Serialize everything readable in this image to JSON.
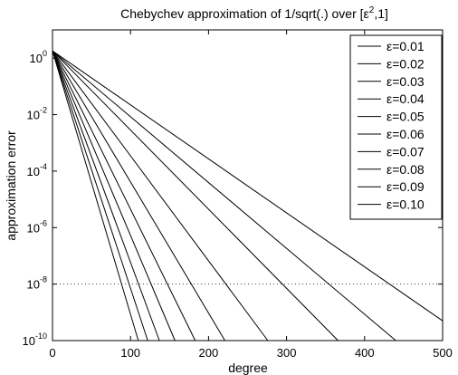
{
  "chart_data": {
    "type": "line",
    "title_main": "Chebychev approximation of 1/sqrt(.) over [ε",
    "title_sup": "2",
    "title_tail": ",1]",
    "xlabel": "degree",
    "ylabel": "approximation error",
    "xlim": [
      0,
      500
    ],
    "ylim_log10": [
      -10,
      1
    ],
    "y_scale": "log",
    "grid": false,
    "x_ticks": [
      0,
      100,
      200,
      300,
      400,
      500
    ],
    "y_ticks": [
      {
        "base": "10",
        "exp": "0",
        "value": 1
      },
      {
        "base": "10",
        "exp": "-2",
        "value": 0.01
      },
      {
        "base": "10",
        "exp": "-4",
        "value": 0.0001
      },
      {
        "base": "10",
        "exp": "-6",
        "value": 1e-06
      },
      {
        "base": "10",
        "exp": "-8",
        "value": 1e-08
      },
      {
        "base": "10",
        "exp": "-10",
        "value": 1e-10
      }
    ],
    "reference_line": {
      "y": 1e-08,
      "style": "dotted"
    },
    "legend_placement": "top-right",
    "series": [
      {
        "name": "ε=0.01",
        "x": [
          0,
          500
        ],
        "y": [
          1.8,
          5e-10
        ]
      },
      {
        "name": "ε=0.02",
        "x": [
          0,
          440
        ],
        "y": [
          1.8,
          1e-10
        ]
      },
      {
        "name": "ε=0.03",
        "x": [
          0,
          366
        ],
        "y": [
          1.8,
          1e-10
        ]
      },
      {
        "name": "ε=0.04",
        "x": [
          0,
          276
        ],
        "y": [
          1.8,
          1e-10
        ]
      },
      {
        "name": "ε=0.05",
        "x": [
          0,
          221
        ],
        "y": [
          1.8,
          1e-10
        ]
      },
      {
        "name": "ε=0.06",
        "x": [
          0,
          183
        ],
        "y": [
          1.8,
          1e-10
        ]
      },
      {
        "name": "ε=0.07",
        "x": [
          0,
          157
        ],
        "y": [
          1.8,
          1e-10
        ]
      },
      {
        "name": "ε=0.08",
        "x": [
          0,
          137
        ],
        "y": [
          1.8,
          1e-10
        ]
      },
      {
        "name": "ε=0.09",
        "x": [
          0,
          122
        ],
        "y": [
          1.8,
          1e-10
        ]
      },
      {
        "name": "ε=0.10",
        "x": [
          0,
          110
        ],
        "y": [
          1.8,
          1e-10
        ]
      }
    ]
  }
}
